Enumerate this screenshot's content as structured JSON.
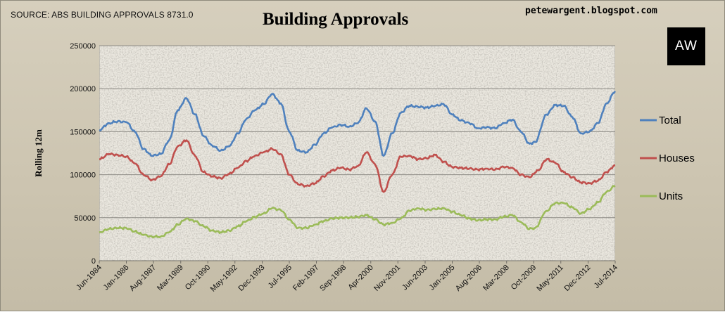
{
  "header": {
    "source": "SOURCE: ABS BUILDING APPROVALS 8731.0",
    "title": "Building Approvals",
    "blog": "petewargent.blogspot.com",
    "logo_text": "AW"
  },
  "chart_data": {
    "type": "line",
    "title": "Building Approvals",
    "ylabel": "Rolling 12m",
    "xlabel": "",
    "ylim": [
      0,
      250000
    ],
    "yticks": [
      0,
      50000,
      100000,
      150000,
      200000,
      250000
    ],
    "ytick_labels": [
      "0",
      "50000",
      "100000",
      "150000",
      "200000",
      "250000"
    ],
    "xlim": [
      1984.42,
      2014.5
    ],
    "x_tick_labels": [
      "Jun-1984",
      "Jan-1986",
      "Aug-1987",
      "Mar-1989",
      "Oct-1990",
      "May-1992",
      "Dec-1993",
      "Jul-1995",
      "Feb-1997",
      "Sep-1998",
      "Apr-2000",
      "Nov-2001",
      "Jun-2003",
      "Jan-2005",
      "Aug-2006",
      "Mar-2008",
      "Oct-2009",
      "May-2011",
      "Dec-2012",
      "Jul-2014"
    ],
    "x_tick_values": [
      1984.42,
      1986.0,
      1987.58,
      1989.17,
      1990.75,
      1992.33,
      1993.92,
      1995.5,
      1997.08,
      1998.67,
      2000.25,
      2001.83,
      2003.42,
      2005.0,
      2006.58,
      2008.17,
      2009.75,
      2011.33,
      2012.92,
      2014.5
    ],
    "grid": true,
    "legend_placement": "right",
    "colors": {
      "Total": "#4f81bd",
      "Houses": "#c0504d",
      "Units": "#9bbb59"
    },
    "series": [
      {
        "name": "Total",
        "points": [
          [
            1984.42,
            152000
          ],
          [
            1985.0,
            160000
          ],
          [
            1985.5,
            162000
          ],
          [
            1986.0,
            161000
          ],
          [
            1986.5,
            150000
          ],
          [
            1987.0,
            130000
          ],
          [
            1987.5,
            122000
          ],
          [
            1988.0,
            124000
          ],
          [
            1988.5,
            140000
          ],
          [
            1989.0,
            175000
          ],
          [
            1989.5,
            189000
          ],
          [
            1990.0,
            170000
          ],
          [
            1990.5,
            145000
          ],
          [
            1991.0,
            134000
          ],
          [
            1991.5,
            128000
          ],
          [
            1992.0,
            133000
          ],
          [
            1992.5,
            148000
          ],
          [
            1993.0,
            165000
          ],
          [
            1993.5,
            175000
          ],
          [
            1994.0,
            182000
          ],
          [
            1994.5,
            194000
          ],
          [
            1995.0,
            183000
          ],
          [
            1995.5,
            150000
          ],
          [
            1996.0,
            128000
          ],
          [
            1996.5,
            126000
          ],
          [
            1997.0,
            135000
          ],
          [
            1997.5,
            148000
          ],
          [
            1998.0,
            155000
          ],
          [
            1998.5,
            158000
          ],
          [
            1999.0,
            156000
          ],
          [
            1999.5,
            160000
          ],
          [
            2000.0,
            177000
          ],
          [
            2000.5,
            162000
          ],
          [
            2001.0,
            122000
          ],
          [
            2001.5,
            148000
          ],
          [
            2002.0,
            172000
          ],
          [
            2002.5,
            180000
          ],
          [
            2003.0,
            179000
          ],
          [
            2003.5,
            178000
          ],
          [
            2004.0,
            180000
          ],
          [
            2004.5,
            182000
          ],
          [
            2005.0,
            170000
          ],
          [
            2005.5,
            163000
          ],
          [
            2006.0,
            160000
          ],
          [
            2006.5,
            154000
          ],
          [
            2007.0,
            155000
          ],
          [
            2007.5,
            154000
          ],
          [
            2008.0,
            160000
          ],
          [
            2008.5,
            164000
          ],
          [
            2009.0,
            150000
          ],
          [
            2009.5,
            136000
          ],
          [
            2009.83,
            138000
          ],
          [
            2010.5,
            170000
          ],
          [
            2011.0,
            181000
          ],
          [
            2011.5,
            180000
          ],
          [
            2012.0,
            167000
          ],
          [
            2012.5,
            148000
          ],
          [
            2013.0,
            150000
          ],
          [
            2013.5,
            160000
          ],
          [
            2014.0,
            183000
          ],
          [
            2014.5,
            197000
          ]
        ]
      },
      {
        "name": "Houses",
        "points": [
          [
            1984.42,
            118000
          ],
          [
            1985.0,
            124000
          ],
          [
            1985.5,
            123000
          ],
          [
            1986.0,
            121000
          ],
          [
            1986.5,
            113000
          ],
          [
            1987.0,
            100000
          ],
          [
            1987.5,
            94000
          ],
          [
            1988.0,
            98000
          ],
          [
            1988.5,
            112000
          ],
          [
            1989.0,
            133000
          ],
          [
            1989.5,
            140000
          ],
          [
            1990.0,
            122000
          ],
          [
            1990.5,
            103000
          ],
          [
            1991.0,
            98000
          ],
          [
            1991.5,
            96000
          ],
          [
            1992.0,
            101000
          ],
          [
            1992.5,
            108000
          ],
          [
            1993.0,
            116000
          ],
          [
            1993.5,
            122000
          ],
          [
            1994.0,
            126000
          ],
          [
            1994.5,
            130000
          ],
          [
            1995.0,
            124000
          ],
          [
            1995.5,
            100000
          ],
          [
            1996.0,
            89000
          ],
          [
            1996.5,
            87000
          ],
          [
            1997.0,
            90000
          ],
          [
            1997.5,
            98000
          ],
          [
            1998.0,
            105000
          ],
          [
            1998.5,
            108000
          ],
          [
            1999.0,
            106000
          ],
          [
            1999.5,
            110000
          ],
          [
            2000.0,
            126000
          ],
          [
            2000.5,
            112000
          ],
          [
            2001.0,
            80000
          ],
          [
            2001.5,
            100000
          ],
          [
            2002.0,
            121000
          ],
          [
            2002.5,
            122000
          ],
          [
            2003.0,
            118000
          ],
          [
            2003.5,
            119000
          ],
          [
            2004.0,
            123000
          ],
          [
            2004.5,
            115000
          ],
          [
            2005.0,
            109000
          ],
          [
            2005.5,
            108000
          ],
          [
            2006.0,
            107000
          ],
          [
            2006.5,
            106000
          ],
          [
            2007.0,
            107000
          ],
          [
            2007.5,
            106000
          ],
          [
            2008.0,
            109000
          ],
          [
            2008.5,
            108000
          ],
          [
            2009.0,
            100000
          ],
          [
            2009.5,
            97000
          ],
          [
            2010.0,
            105000
          ],
          [
            2010.5,
            118000
          ],
          [
            2011.0,
            114000
          ],
          [
            2011.5,
            103000
          ],
          [
            2012.0,
            97000
          ],
          [
            2012.5,
            91000
          ],
          [
            2013.0,
            90000
          ],
          [
            2013.5,
            93000
          ],
          [
            2014.0,
            103000
          ],
          [
            2014.5,
            111000
          ]
        ]
      },
      {
        "name": "Units",
        "points": [
          [
            1984.42,
            33000
          ],
          [
            1985.0,
            37000
          ],
          [
            1985.5,
            38000
          ],
          [
            1986.0,
            38000
          ],
          [
            1986.5,
            34000
          ],
          [
            1987.0,
            30000
          ],
          [
            1987.5,
            28000
          ],
          [
            1988.0,
            28000
          ],
          [
            1988.5,
            33000
          ],
          [
            1989.0,
            42000
          ],
          [
            1989.5,
            49000
          ],
          [
            1990.0,
            46000
          ],
          [
            1990.5,
            40000
          ],
          [
            1991.0,
            35000
          ],
          [
            1991.5,
            33000
          ],
          [
            1992.0,
            35000
          ],
          [
            1992.5,
            40000
          ],
          [
            1993.0,
            46000
          ],
          [
            1993.5,
            51000
          ],
          [
            1994.0,
            55000
          ],
          [
            1994.5,
            61000
          ],
          [
            1995.0,
            59000
          ],
          [
            1995.5,
            48000
          ],
          [
            1996.0,
            38000
          ],
          [
            1996.5,
            38000
          ],
          [
            1997.0,
            42000
          ],
          [
            1997.5,
            46000
          ],
          [
            1998.0,
            49000
          ],
          [
            1998.5,
            50000
          ],
          [
            1999.0,
            50000
          ],
          [
            1999.5,
            51000
          ],
          [
            2000.0,
            53000
          ],
          [
            2000.5,
            48000
          ],
          [
            2001.0,
            42000
          ],
          [
            2001.5,
            44000
          ],
          [
            2002.0,
            49000
          ],
          [
            2002.5,
            58000
          ],
          [
            2003.0,
            61000
          ],
          [
            2003.5,
            59000
          ],
          [
            2004.0,
            60000
          ],
          [
            2004.5,
            61000
          ],
          [
            2005.0,
            57000
          ],
          [
            2005.5,
            53000
          ],
          [
            2006.0,
            49000
          ],
          [
            2006.5,
            47000
          ],
          [
            2007.0,
            48000
          ],
          [
            2007.5,
            48000
          ],
          [
            2008.0,
            51000
          ],
          [
            2008.5,
            53000
          ],
          [
            2009.0,
            45000
          ],
          [
            2009.5,
            37000
          ],
          [
            2009.83,
            38000
          ],
          [
            2010.5,
            58000
          ],
          [
            2011.0,
            67000
          ],
          [
            2011.5,
            67000
          ],
          [
            2012.0,
            62000
          ],
          [
            2012.5,
            55000
          ],
          [
            2013.0,
            60000
          ],
          [
            2013.5,
            68000
          ],
          [
            2014.0,
            80000
          ],
          [
            2014.5,
            87000
          ]
        ]
      }
    ]
  }
}
